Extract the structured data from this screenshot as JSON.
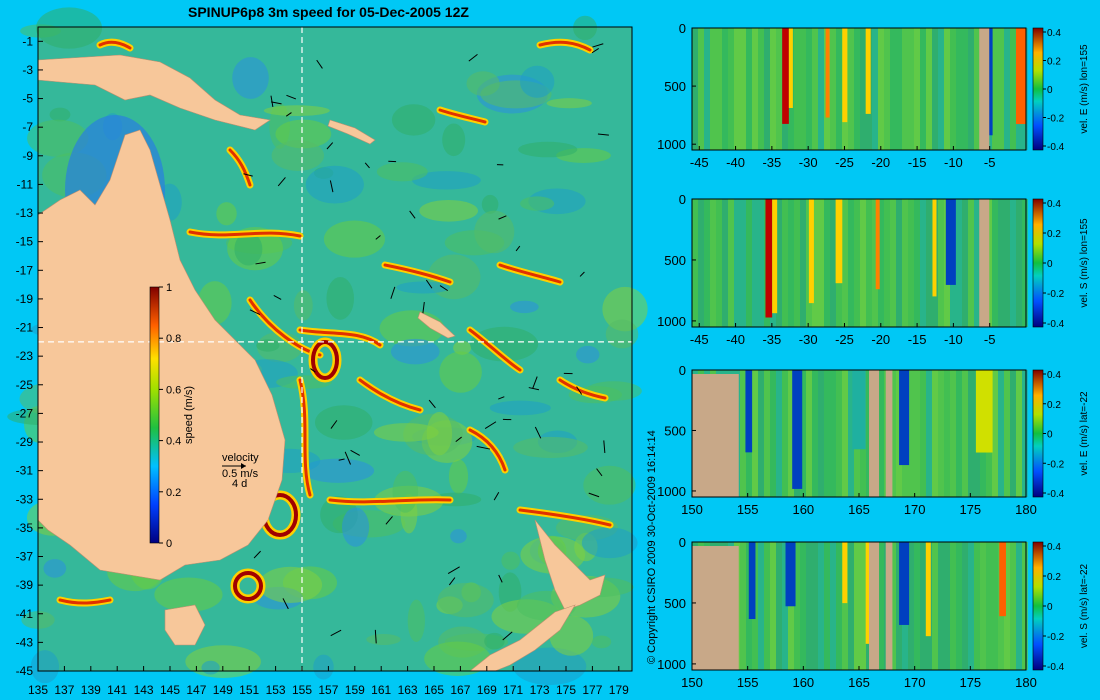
{
  "title": "SPINUP6p8 3m speed for 05-Dec-2005 12Z",
  "copyright": "© Copyright CSIRO 2009   30-Oct-2009 16:14:14",
  "colors": {
    "land": "#f7c79a",
    "land_section": "#c8a888",
    "background": "#00c8f5"
  },
  "map": {
    "lon_ticks": [
      135,
      137,
      139,
      141,
      143,
      145,
      147,
      149,
      151,
      153,
      155,
      157,
      159,
      161,
      163,
      165,
      167,
      169,
      171,
      173,
      175,
      177,
      179
    ],
    "lat_ticks": [
      -1,
      -3,
      -5,
      -7,
      -9,
      -11,
      -13,
      -15,
      -17,
      -19,
      -21,
      -23,
      -25,
      -27,
      -29,
      -31,
      -33,
      -35,
      -37,
      -39,
      -41,
      -43,
      -45
    ],
    "xlim": [
      135,
      180
    ],
    "ylim": [
      -45,
      0
    ],
    "section_lon": 155,
    "section_lat": -22,
    "colorbar": {
      "label": "speed (m/s)",
      "ticks": [
        "0",
        "0.2",
        "0.4",
        "0.6",
        "0.8",
        "1"
      ]
    },
    "velocity_key": {
      "label": "velocity",
      "speed": "0.5 m/s",
      "days": "4 d"
    }
  },
  "chart_data": [
    {
      "type": "heatmap",
      "title": "",
      "ylabel_right": "vel. E (m/s) lon=155",
      "x_ticks": [
        "-45",
        "-40",
        "-35",
        "-30",
        "-25",
        "-20",
        "-15",
        "-10",
        "-5"
      ],
      "y_ticks": [
        "0",
        "500",
        "1000"
      ],
      "cbar_ticks": [
        "0.4",
        "0.2",
        "0",
        "-0.2",
        "-0.4"
      ],
      "xlim": [
        -46,
        0
      ],
      "ylim": [
        0,
        1050
      ],
      "vlim": [
        -0.4,
        0.4
      ]
    },
    {
      "type": "heatmap",
      "title": "",
      "ylabel_right": "vel. S (m/s) lon=155",
      "x_ticks": [
        "-45",
        "-40",
        "-35",
        "-30",
        "-25",
        "-20",
        "-15",
        "-10",
        "-5"
      ],
      "y_ticks": [
        "0",
        "500",
        "1000"
      ],
      "cbar_ticks": [
        "0.4",
        "0.2",
        "0",
        "-0.2",
        "-0.4"
      ],
      "xlim": [
        -46,
        0
      ],
      "ylim": [
        0,
        1050
      ],
      "vlim": [
        -0.4,
        0.4
      ]
    },
    {
      "type": "heatmap",
      "title": "",
      "ylabel_right": "vel. E (m/s) lat=-22",
      "x_ticks": [
        "150",
        "155",
        "160",
        "165",
        "170",
        "175",
        "180"
      ],
      "y_ticks": [
        "0",
        "500",
        "1000"
      ],
      "cbar_ticks": [
        "0.4",
        "0.2",
        "0",
        "-0.2",
        "-0.4"
      ],
      "xlim": [
        150,
        180
      ],
      "ylim": [
        0,
        1050
      ],
      "vlim": [
        -0.4,
        0.4
      ]
    },
    {
      "type": "heatmap",
      "title": "",
      "ylabel_right": "vel. S (m/s) lat=-22",
      "x_ticks": [
        "150",
        "155",
        "160",
        "165",
        "170",
        "175",
        "180"
      ],
      "y_ticks": [
        "0",
        "500",
        "1000"
      ],
      "cbar_ticks": [
        "0.4",
        "0.2",
        "0",
        "-0.2",
        "-0.4"
      ],
      "xlim": [
        150,
        180
      ],
      "ylim": [
        0,
        1050
      ],
      "vlim": [
        -0.4,
        0.4
      ]
    }
  ]
}
